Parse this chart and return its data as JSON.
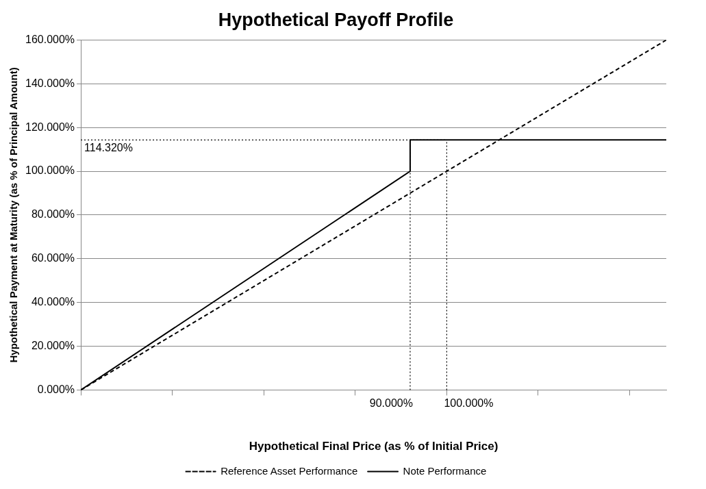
{
  "chart_data": {
    "type": "line",
    "title": "Hypothetical Payoff Profile",
    "xlabel": "Hypothetical Final Price (as % of Initial Price)",
    "ylabel": "Hypothetical Payment at Maturity (as % of Principal Amount)",
    "series": [
      {
        "name": "Reference Asset Performance",
        "color": "#000000",
        "line_style": "dashed",
        "x": [
          0,
          160
        ],
        "values": [
          0,
          160
        ]
      },
      {
        "name": "Note Performance",
        "color": "#000000",
        "line_style": "solid",
        "x": [
          0,
          90,
          90,
          160
        ],
        "values": [
          0,
          100,
          114.32,
          114.32
        ]
      }
    ],
    "xlim": [
      0,
      160
    ],
    "xticks": [
      {
        "value": 0,
        "label": null
      },
      {
        "value": 25,
        "label": null
      },
      {
        "value": 50,
        "label": null
      },
      {
        "value": 75,
        "label": null
      },
      {
        "value": 100,
        "label": null
      },
      {
        "value": 125,
        "label": null
      },
      {
        "value": 150,
        "label": null
      }
    ],
    "ylim": [
      0,
      160
    ],
    "yticks": [
      {
        "value": 0,
        "label": "0.000%"
      },
      {
        "value": 20,
        "label": "20.000%"
      },
      {
        "value": 40,
        "label": "40.000%"
      },
      {
        "value": 60,
        "label": "60.000%"
      },
      {
        "value": 80,
        "label": "80.000%"
      },
      {
        "value": 100,
        "label": "100.000%"
      },
      {
        "value": 120,
        "label": "120.000%"
      },
      {
        "value": 140,
        "label": "140.000%"
      },
      {
        "value": 160,
        "label": "160.000%"
      }
    ],
    "ref_lines": [
      {
        "axis": "y",
        "value": 114.32,
        "label": "114.320%",
        "line_style": "dotted"
      },
      {
        "axis": "x",
        "value": 90,
        "label": "90.000%",
        "line_style": "dotted"
      },
      {
        "axis": "x",
        "value": 100,
        "label": "100.000%",
        "line_style": "dotted"
      }
    ],
    "grid": "y",
    "legend": "bottom",
    "marker": "none"
  }
}
